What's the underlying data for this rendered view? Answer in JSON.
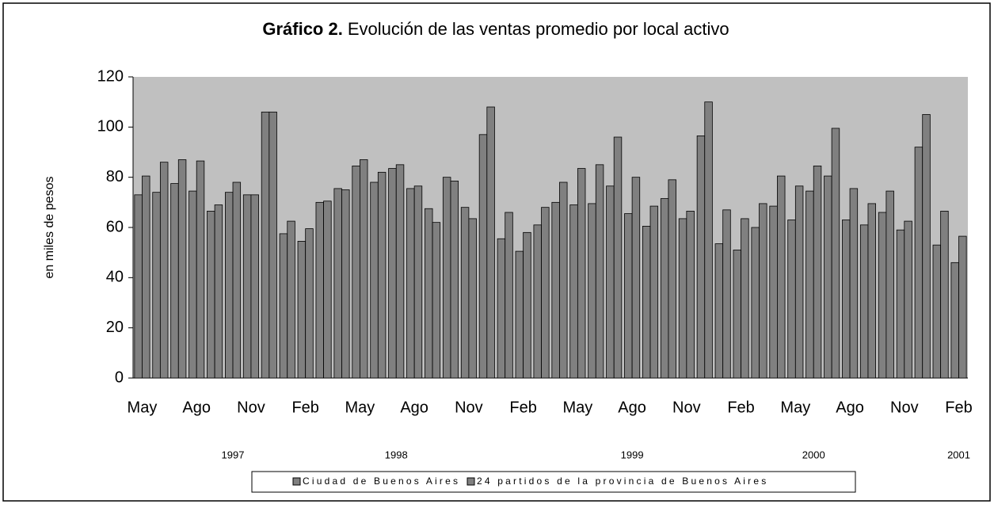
{
  "chart_data": {
    "type": "bar",
    "title_label": "Gráfico 2.",
    "title": "Evolución de las ventas promedio por local activo",
    "y_label": "en miles de pesos",
    "categories": [
      "May",
      null,
      null,
      "Ago",
      null,
      null,
      "Nov",
      null,
      null,
      "Feb",
      null,
      null,
      "May",
      null,
      null,
      "Ago",
      null,
      null,
      "Nov",
      null,
      null,
      "Feb",
      null,
      null,
      "May",
      null,
      null,
      "Ago",
      null,
      null,
      "Nov",
      null,
      null,
      "Feb",
      null,
      null,
      "May",
      null,
      null,
      "Ago",
      null,
      null,
      "Nov",
      null,
      null,
      "Feb"
    ],
    "years": [
      null,
      null,
      null,
      null,
      null,
      "1997",
      null,
      null,
      null,
      null,
      null,
      null,
      null,
      null,
      "1998",
      null,
      null,
      null,
      null,
      null,
      null,
      null,
      null,
      null,
      null,
      null,
      null,
      "1999",
      null,
      null,
      null,
      null,
      null,
      null,
      null,
      null,
      null,
      "2000",
      null,
      null,
      null,
      null,
      null,
      null,
      null,
      "2001"
    ],
    "series": [
      {
        "name": "Ciudad de Buenos Aires",
        "color": "#808080",
        "values": [
          73,
          74,
          77.5,
          74.5,
          66.5,
          74,
          73,
          106,
          57.5,
          54.5,
          70,
          75.5,
          84.5,
          78,
          83.5,
          75.5,
          67.5,
          80,
          68,
          97,
          55.5,
          50.5,
          61,
          70,
          69,
          69.5,
          76.5,
          65.5,
          60.5,
          71.5,
          63.5,
          96.5,
          53.5,
          51,
          60,
          68.5,
          63,
          74.5,
          80.5,
          63,
          61,
          66,
          59,
          92,
          53,
          46
        ]
      },
      {
        "name": "24 partidos de la provincia de Buenos Aires",
        "color": "#808080",
        "values": [
          80.5,
          86,
          87,
          86.5,
          69,
          78,
          73,
          106,
          62.5,
          59.5,
          70.5,
          75,
          87,
          82,
          85,
          76.5,
          62,
          78.5,
          63.5,
          108,
          66,
          58,
          68,
          78,
          83.5,
          85,
          96,
          80,
          68.5,
          79,
          66.5,
          110,
          67,
          63.5,
          69.5,
          80.5,
          76.5,
          84.5,
          99.5,
          75.5,
          69.5,
          74.5,
          62.5,
          105,
          66.5,
          56.5
        ]
      }
    ],
    "ylim": [
      0,
      120
    ],
    "yticks": [
      0,
      20,
      40,
      60,
      80,
      100,
      120
    ],
    "plot_background": "#c0c0c0",
    "grid": false,
    "legend": "bottom"
  }
}
